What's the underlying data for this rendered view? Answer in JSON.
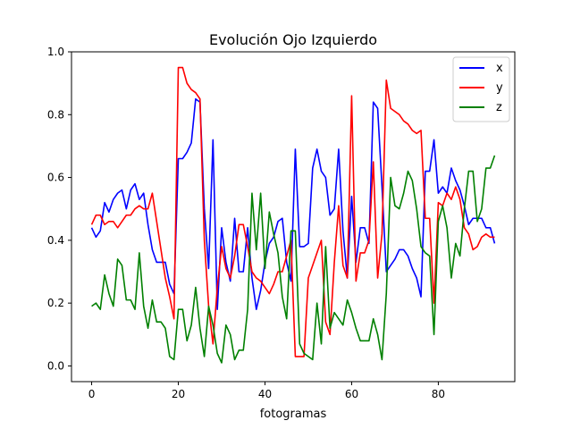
{
  "chart_data": {
    "type": "line",
    "title": "Evolución Ojo Izquierdo",
    "xlabel": "fotogramas",
    "ylabel": "",
    "xlim": [
      -4.65,
      97.65
    ],
    "ylim": [
      -0.05,
      1.0
    ],
    "xticks": [
      0,
      20,
      40,
      60,
      80
    ],
    "yticks": [
      0.0,
      0.2,
      0.4,
      0.6,
      0.8,
      1.0
    ],
    "xtick_labels": [
      "0",
      "20",
      "40",
      "60",
      "80"
    ],
    "ytick_labels": [
      "0.0",
      "0.2",
      "0.4",
      "0.6",
      "0.8",
      "1.0"
    ],
    "grid": false,
    "legend_position": "top-right",
    "x": [
      0,
      1,
      2,
      3,
      4,
      5,
      6,
      7,
      8,
      9,
      10,
      11,
      12,
      13,
      14,
      15,
      16,
      17,
      18,
      19,
      20,
      21,
      22,
      23,
      24,
      25,
      26,
      27,
      28,
      29,
      30,
      31,
      32,
      33,
      34,
      35,
      36,
      37,
      38,
      39,
      40,
      41,
      42,
      43,
      44,
      45,
      46,
      47,
      48,
      49,
      50,
      51,
      52,
      53,
      54,
      55,
      56,
      57,
      58,
      59,
      60,
      61,
      62,
      63,
      64,
      65,
      66,
      67,
      68,
      69,
      70,
      71,
      72,
      73,
      74,
      75,
      76,
      77,
      78,
      79,
      80,
      81,
      82,
      83,
      84,
      85,
      86,
      87,
      88,
      89,
      90,
      91,
      92,
      93
    ],
    "series": [
      {
        "name": "x",
        "color": "#0000ff",
        "values": [
          0.44,
          0.41,
          0.43,
          0.52,
          0.49,
          0.53,
          0.55,
          0.56,
          0.5,
          0.56,
          0.58,
          0.53,
          0.55,
          0.45,
          0.37,
          0.33,
          0.33,
          0.33,
          0.26,
          0.23,
          0.66,
          0.66,
          0.68,
          0.71,
          0.85,
          0.84,
          0.5,
          0.31,
          0.72,
          0.18,
          0.44,
          0.33,
          0.27,
          0.47,
          0.3,
          0.3,
          0.44,
          0.28,
          0.18,
          0.24,
          0.33,
          0.39,
          0.41,
          0.46,
          0.47,
          0.33,
          0.27,
          0.69,
          0.38,
          0.38,
          0.39,
          0.63,
          0.69,
          0.62,
          0.6,
          0.48,
          0.5,
          0.69,
          0.43,
          0.28,
          0.54,
          0.33,
          0.44,
          0.44,
          0.39,
          0.84,
          0.82,
          0.57,
          0.3,
          0.32,
          0.34,
          0.37,
          0.37,
          0.35,
          0.31,
          0.28,
          0.22,
          0.62,
          0.62,
          0.72,
          0.55,
          0.57,
          0.55,
          0.63,
          0.59,
          0.56,
          0.51,
          0.45,
          0.47,
          0.47,
          0.47,
          0.44,
          0.44,
          0.39
        ]
      },
      {
        "name": "y",
        "color": "#ff0000",
        "values": [
          0.45,
          0.48,
          0.48,
          0.45,
          0.46,
          0.46,
          0.44,
          0.46,
          0.48,
          0.48,
          0.5,
          0.51,
          0.5,
          0.5,
          0.55,
          0.46,
          0.37,
          0.28,
          0.22,
          0.15,
          0.95,
          0.95,
          0.9,
          0.88,
          0.87,
          0.85,
          0.4,
          0.19,
          0.07,
          0.25,
          0.38,
          0.31,
          0.28,
          0.35,
          0.45,
          0.45,
          0.38,
          0.3,
          0.28,
          0.27,
          0.25,
          0.23,
          0.26,
          0.3,
          0.3,
          0.35,
          0.4,
          0.03,
          0.03,
          0.03,
          0.28,
          0.32,
          0.36,
          0.4,
          0.14,
          0.1,
          0.33,
          0.51,
          0.32,
          0.28,
          0.86,
          0.27,
          0.36,
          0.36,
          0.4,
          0.65,
          0.28,
          0.42,
          0.91,
          0.82,
          0.81,
          0.8,
          0.78,
          0.77,
          0.75,
          0.74,
          0.75,
          0.47,
          0.47,
          0.2,
          0.52,
          0.51,
          0.55,
          0.53,
          0.57,
          0.53,
          0.44,
          0.42,
          0.37,
          0.38,
          0.41,
          0.42,
          0.41,
          0.41
        ]
      },
      {
        "name": "z",
        "color": "#008000",
        "values": [
          0.19,
          0.2,
          0.18,
          0.29,
          0.23,
          0.19,
          0.34,
          0.32,
          0.21,
          0.21,
          0.18,
          0.36,
          0.19,
          0.12,
          0.21,
          0.14,
          0.14,
          0.12,
          0.03,
          0.02,
          0.18,
          0.18,
          0.08,
          0.13,
          0.25,
          0.12,
          0.03,
          0.19,
          0.13,
          0.04,
          0.01,
          0.13,
          0.1,
          0.02,
          0.05,
          0.05,
          0.18,
          0.55,
          0.37,
          0.55,
          0.31,
          0.49,
          0.42,
          0.36,
          0.22,
          0.15,
          0.43,
          0.43,
          0.07,
          0.04,
          0.03,
          0.02,
          0.2,
          0.07,
          0.38,
          0.12,
          0.17,
          0.15,
          0.13,
          0.21,
          0.17,
          0.12,
          0.08,
          0.08,
          0.08,
          0.15,
          0.1,
          0.02,
          0.23,
          0.6,
          0.51,
          0.5,
          0.55,
          0.62,
          0.59,
          0.5,
          0.38,
          0.36,
          0.35,
          0.1,
          0.46,
          0.51,
          0.44,
          0.28,
          0.39,
          0.35,
          0.5,
          0.62,
          0.62,
          0.46,
          0.5,
          0.63,
          0.63,
          0.67
        ]
      }
    ]
  }
}
